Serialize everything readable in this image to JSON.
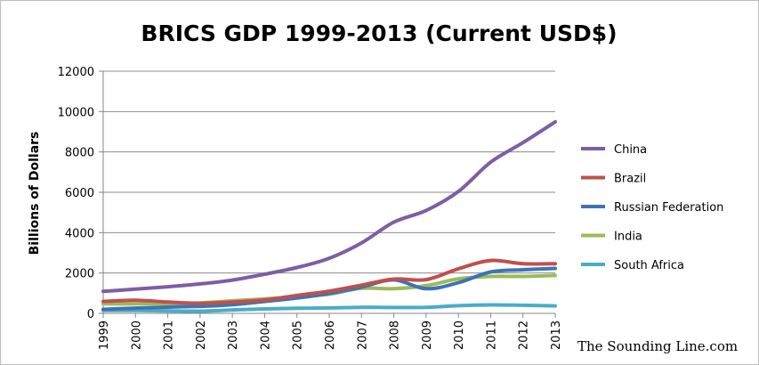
{
  "chart_data": {
    "type": "line",
    "title": "BRICS GDP 1999-2013 (Current USD$)",
    "xlabel": "",
    "ylabel": "Billions of Dollars",
    "x": [
      "1999",
      "2000",
      "2001",
      "2002",
      "2003",
      "2004",
      "2005",
      "2006",
      "2007",
      "2008",
      "2009",
      "2010",
      "2011",
      "2012",
      "2013"
    ],
    "ylim": [
      0,
      12000
    ],
    "yticks": [
      0,
      2000,
      4000,
      6000,
      8000,
      10000,
      12000
    ],
    "grid": true,
    "legend_position": "right",
    "series": [
      {
        "name": "China",
        "color": "#7e5ea4",
        "values": [
          1090,
          1200,
          1320,
          1460,
          1650,
          1940,
          2270,
          2730,
          3490,
          4520,
          5100,
          6040,
          7490,
          8460,
          9490
        ]
      },
      {
        "name": "Brazil",
        "color": "#c0504d",
        "values": [
          590,
          650,
          560,
          500,
          560,
          660,
          890,
          1100,
          1400,
          1700,
          1670,
          2210,
          2620,
          2460,
          2460
        ]
      },
      {
        "name": "Russian Federation",
        "color": "#3e73b5",
        "values": [
          200,
          260,
          310,
          350,
          430,
          590,
          760,
          990,
          1300,
          1660,
          1220,
          1520,
          2050,
          2160,
          2230
        ]
      },
      {
        "name": "India",
        "color": "#9bbb59",
        "values": [
          470,
          470,
          480,
          520,
          620,
          720,
          830,
          950,
          1240,
          1220,
          1370,
          1710,
          1830,
          1830,
          1880
        ]
      },
      {
        "name": "South Africa",
        "color": "#4bacc6",
        "values": [
          140,
          140,
          120,
          110,
          170,
          220,
          250,
          270,
          300,
          290,
          300,
          380,
          420,
          400,
          370
        ]
      }
    ]
  },
  "watermark": "The Sounding Line.com"
}
